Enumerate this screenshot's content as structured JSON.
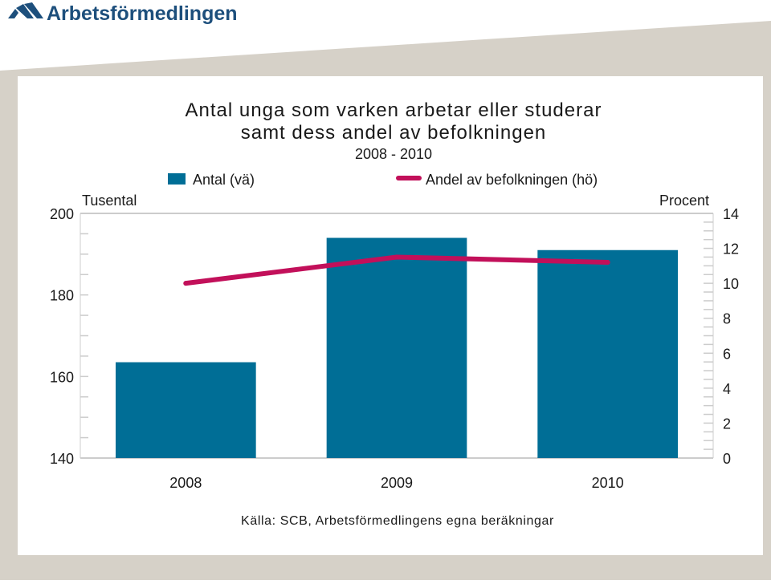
{
  "brand": {
    "name": "Arbetsförmedlingen",
    "color": "#1d4f7c",
    "frame_color": "#d6d1c8"
  },
  "chart_data": {
    "type": "bar",
    "title": "Antal unga som varken arbetar eller studerar",
    "subtitle": "samt dess andel av befolkningen",
    "period": "2008 - 2010",
    "categories": [
      "2008",
      "2009",
      "2010"
    ],
    "series": [
      {
        "name": "Antal (vä)",
        "type": "bar",
        "axis": "left",
        "values": [
          163.5,
          194,
          191
        ],
        "color": "#006e96"
      },
      {
        "name": "Andel av befolkningen (hö)",
        "type": "line",
        "axis": "right",
        "values": [
          10.0,
          11.5,
          11.2
        ],
        "color": "#c2105a"
      }
    ],
    "left_axis": {
      "label": "Tusental",
      "ylim": [
        140,
        200
      ],
      "ticks": [
        "140",
        "160",
        "180",
        "200"
      ],
      "minor_step": 5
    },
    "right_axis": {
      "label": "Procent",
      "ylim": [
        0,
        14
      ],
      "ticks": [
        "0",
        "2",
        "4",
        "6",
        "8",
        "10",
        "12",
        "14"
      ],
      "minor_step": 0.5
    },
    "grid": false,
    "legend": "top",
    "source": "Källa: SCB, Arbetsförmedlingens egna beräkningar"
  }
}
